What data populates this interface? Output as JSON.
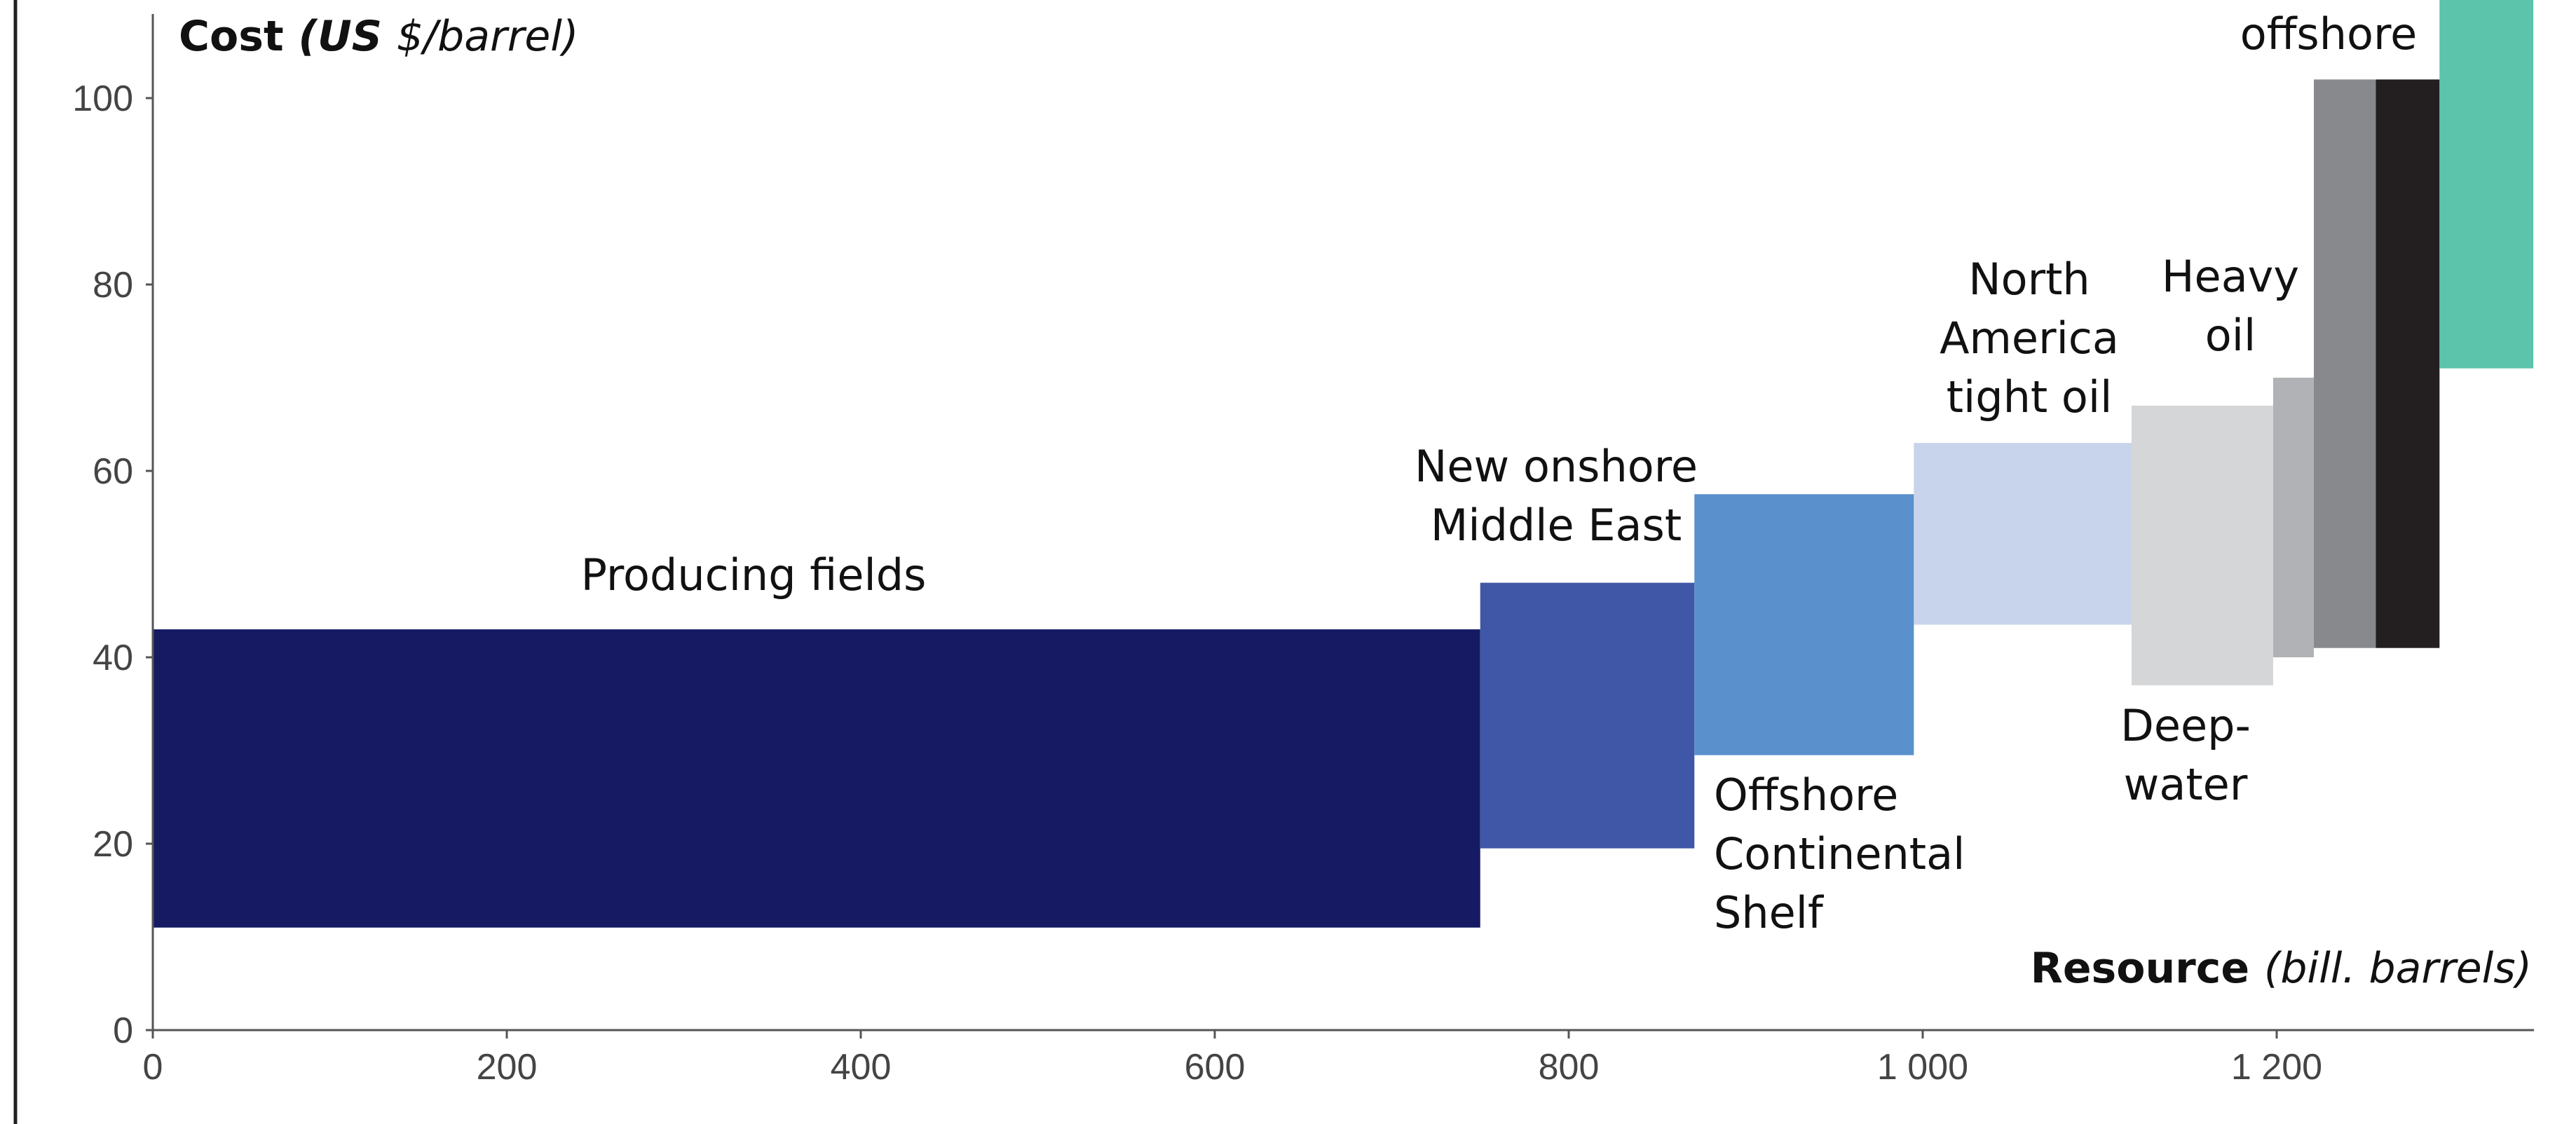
{
  "chart_data": {
    "type": "bar",
    "variant": "supply-cost-curve",
    "y_title_parts": [
      {
        "text": "Cost ",
        "bold": true,
        "italic": false
      },
      {
        "text": "(US ",
        "bold": true,
        "italic": true
      },
      {
        "text": "$/barrel)",
        "bold": false,
        "italic": true
      }
    ],
    "x_title_parts": [
      {
        "text": "Resource ",
        "bold": true,
        "italic": false
      },
      {
        "text": "(bill. barrels)",
        "bold": false,
        "italic": true
      }
    ],
    "xlim": [
      0,
      1340
    ],
    "ylim": [
      0,
      110
    ],
    "x_ticks": [
      {
        "value": 0,
        "label": "0"
      },
      {
        "value": 200,
        "label": "200"
      },
      {
        "value": 400,
        "label": "400"
      },
      {
        "value": 600,
        "label": "600"
      },
      {
        "value": 800,
        "label": "800"
      },
      {
        "value": 1000,
        "label": "1 000"
      },
      {
        "value": 1200,
        "label": "1 200"
      }
    ],
    "y_ticks": [
      {
        "value": 0,
        "label": "0"
      },
      {
        "value": 20,
        "label": "20"
      },
      {
        "value": 40,
        "label": "40"
      },
      {
        "value": 60,
        "label": "60"
      },
      {
        "value": 80,
        "label": "80"
      },
      {
        "value": 100,
        "label": "100"
      }
    ],
    "grid": false,
    "segments": [
      {
        "label_lines": [
          "Producing fields"
        ],
        "x_start": 0,
        "x_end": 750,
        "cost_low": 11,
        "cost_high": 43,
        "color": "#151a62"
      },
      {
        "label_lines": [
          "New onshore",
          "Middle East"
        ],
        "x_start": 750,
        "x_end": 871,
        "cost_low": 19.5,
        "cost_high": 48,
        "color": "#3f57a6"
      },
      {
        "label_lines": [
          "Offshore",
          "Continental",
          "Shelf"
        ],
        "x_start": 871,
        "x_end": 995,
        "cost_low": 29.5,
        "cost_high": 57.5,
        "color": "#5a90cb"
      },
      {
        "label_lines": [
          "North",
          "America",
          "tight oil"
        ],
        "x_start": 995,
        "x_end": 1118,
        "cost_low": 43.5,
        "cost_high": 63,
        "color": "#c8d4eb"
      },
      {
        "label_lines": [
          "Deep-",
          "water"
        ],
        "x_start": 1118,
        "x_end": 1198,
        "cost_low": 37,
        "cost_high": 67,
        "color": "#d5d6d8"
      },
      {
        "label_lines": [
          "Heavy",
          "oil"
        ],
        "x_start": 1198,
        "x_end": 1221,
        "cost_low": 40,
        "cost_high": 70,
        "color": "#b0b2b5"
      },
      {
        "label_lines": [],
        "x_start": 1221,
        "x_end": 1256,
        "cost_low": 41,
        "cost_high": 102,
        "color": "#87898c"
      },
      {
        "label_lines": [],
        "x_start": 1256,
        "x_end": 1292,
        "cost_low": 41,
        "cost_high": 102,
        "color": "#231f20"
      },
      {
        "label_lines": [
          "offshore"
        ],
        "x_start": 1292,
        "x_end": 1345,
        "cost_low": 71,
        "cost_high": 115,
        "color": "#5bc4aa"
      }
    ]
  }
}
